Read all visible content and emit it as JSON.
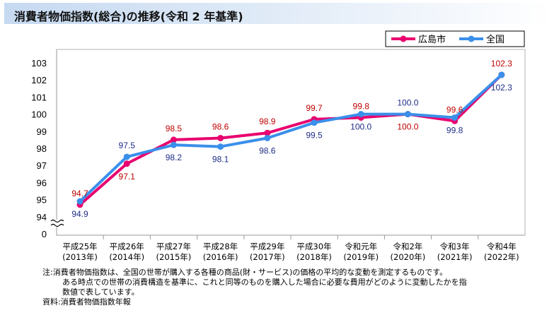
{
  "title": "消費者物価指数(総合)の推移(令和 2 年基準)",
  "chart_data": {
    "type": "line",
    "categories": [
      {
        "era": "平成25年",
        "year": "(2013年)"
      },
      {
        "era": "平成26年",
        "year": "(2014年)"
      },
      {
        "era": "平成27年",
        "year": "(2015年)"
      },
      {
        "era": "平成28年",
        "year": "(2016年)"
      },
      {
        "era": "平成29年",
        "year": "(2017年)"
      },
      {
        "era": "平成30年",
        "year": "(2018年)"
      },
      {
        "era": "令和元年",
        "year": "(2019年)"
      },
      {
        "era": "令和2年",
        "year": "(2020年)"
      },
      {
        "era": "令和3年",
        "year": "(2021年)"
      },
      {
        "era": "令和4年",
        "year": "(2022年)"
      }
    ],
    "series": [
      {
        "name": "広島市",
        "color": "#e8006f",
        "label_color": "#c00000",
        "values": [
          94.7,
          97.1,
          98.5,
          98.6,
          98.9,
          99.7,
          99.8,
          100.0,
          99.6,
          102.3
        ],
        "labels": [
          "94.7",
          "97.1",
          "98.5",
          "98.6",
          "98.9",
          "99.7",
          "99.8",
          "100.0",
          "99.6",
          "102.3"
        ],
        "label_pos": [
          "above",
          "below",
          "above",
          "above",
          "above",
          "above",
          "above",
          "below",
          "above",
          "above"
        ]
      },
      {
        "name": "全国",
        "color": "#3a8fea",
        "label_color": "#1f2d86",
        "values": [
          94.9,
          97.5,
          98.2,
          98.1,
          98.6,
          99.5,
          100.0,
          100.0,
          99.8,
          102.3
        ],
        "labels": [
          "94.9",
          "97.5",
          "98.2",
          "98.1",
          "98.6",
          "99.5",
          "100.0",
          "100.0",
          "99.8",
          "102.3"
        ],
        "label_pos": [
          "below",
          "above",
          "below",
          "below",
          "below",
          "below",
          "below",
          "above",
          "below",
          "below"
        ]
      }
    ],
    "y_ticks": [
      "103",
      "102",
      "101",
      "100",
      "99",
      "98",
      "97",
      "96",
      "95",
      "94",
      "0"
    ],
    "ylim": [
      94,
      103
    ],
    "y_break": true,
    "legend_position": "top-right"
  },
  "notes": [
    "注:消費者物価指数は、全国の世帯が購入する各種の商品(財・サービス)の価格の平均的な変動を測定するものです。",
    "ある時点での世帯の消費構造を基準に、これと同等のものを購入した場合に必要な費用がどのように変動したかを指",
    "数値で表しています。",
    "資料:消費者物価指数年報"
  ]
}
